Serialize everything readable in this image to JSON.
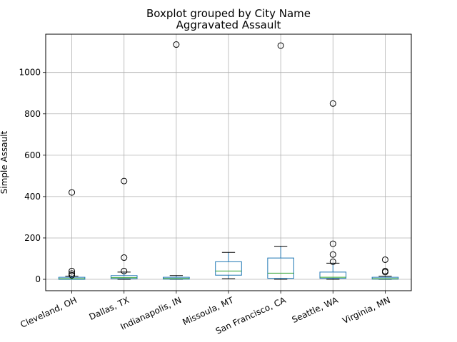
{
  "chart_data": {
    "type": "boxplot",
    "suptitle": "Boxplot grouped by City Name",
    "title": "Aggravated Assault",
    "xlabel": "",
    "ylabel": "Simple Assault",
    "ylim": [
      -55,
      1185
    ],
    "yticks": [
      0,
      200,
      400,
      600,
      800,
      1000
    ],
    "grid": true,
    "box_color": "#1f77b4",
    "median_color": "#2ca02c",
    "categories": [
      "Cleveland, OH",
      "Dallas, TX",
      "Indianapolis, IN",
      "Missoula, MT",
      "San Francisco, CA",
      "Seattle, WA",
      "Virginia, MN"
    ],
    "boxes": [
      {
        "whisker_low": 0,
        "q1": 0,
        "median": 3,
        "q3": 10,
        "whisker_high": 15,
        "outliers": [
          20,
          28,
          40,
          420
        ]
      },
      {
        "whisker_low": 0,
        "q1": 3,
        "median": 8,
        "q3": 18,
        "whisker_high": 35,
        "outliers": [
          40,
          105,
          475
        ]
      },
      {
        "whisker_low": 0,
        "q1": 1,
        "median": 4,
        "q3": 10,
        "whisker_high": 18,
        "outliers": [
          1135
        ]
      },
      {
        "whisker_low": 3,
        "q1": 20,
        "median": 40,
        "q3": 85,
        "whisker_high": 130,
        "outliers": []
      },
      {
        "whisker_low": 0,
        "q1": 5,
        "median": 30,
        "q3": 103,
        "whisker_high": 160,
        "outliers": [
          1130
        ]
      },
      {
        "whisker_low": 0,
        "q1": 5,
        "median": 10,
        "q3": 35,
        "whisker_high": 78,
        "outliers": [
          85,
          120,
          172,
          850
        ]
      },
      {
        "whisker_low": 0,
        "q1": 1,
        "median": 3,
        "q3": 10,
        "whisker_high": 15,
        "outliers": [
          35,
          40,
          95
        ]
      }
    ]
  }
}
